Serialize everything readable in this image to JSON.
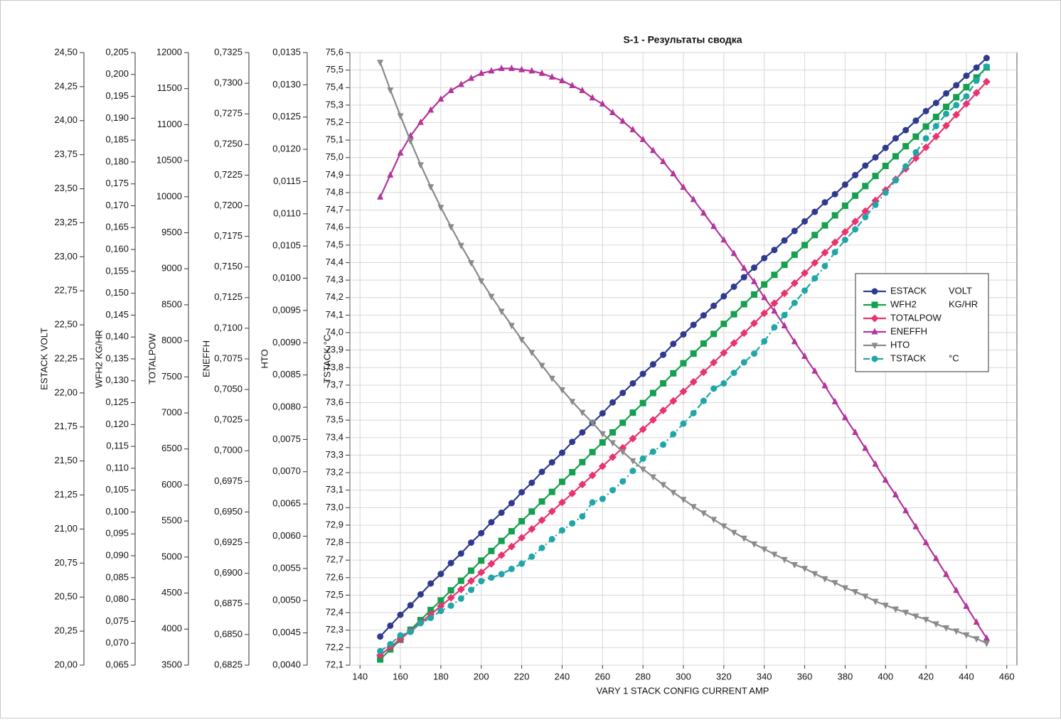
{
  "chart_data": {
    "type": "line",
    "title": "S-1 - Результаты сводка",
    "xlabel": "VARY 1 STACK CONFIG CURRENT AMP",
    "xlim": [
      135,
      465
    ],
    "xticks": [
      140,
      160,
      180,
      200,
      220,
      240,
      260,
      280,
      300,
      320,
      340,
      360,
      380,
      400,
      420,
      440,
      460
    ],
    "grid": true,
    "legend": "right",
    "x": [
      150,
      155,
      160,
      165,
      170,
      175,
      180,
      185,
      190,
      195,
      200,
      205,
      210,
      215,
      220,
      225,
      230,
      235,
      240,
      245,
      250,
      255,
      260,
      265,
      270,
      275,
      280,
      285,
      290,
      295,
      300,
      305,
      310,
      315,
      320,
      325,
      330,
      335,
      340,
      345,
      350,
      355,
      360,
      365,
      370,
      375,
      380,
      385,
      390,
      395,
      400,
      405,
      410,
      415,
      420,
      425,
      430,
      435,
      440,
      445,
      450
    ],
    "axes": [
      {
        "label": "ESTACK  VOLT",
        "ylim": [
          20,
          24.5
        ],
        "yticks": [
          {
            "value": 20,
            "label": "20,00"
          },
          {
            "value": 20.25,
            "label": "20,25"
          },
          {
            "value": 20.5,
            "label": "20,50"
          },
          {
            "value": 20.75,
            "label": "20,75"
          },
          {
            "value": 21,
            "label": "21,00"
          },
          {
            "value": 21.25,
            "label": "21,25"
          },
          {
            "value": 21.5,
            "label": "21,50"
          },
          {
            "value": 21.75,
            "label": "21,75"
          },
          {
            "value": 22,
            "label": "22,00"
          },
          {
            "value": 22.25,
            "label": "22,25"
          },
          {
            "value": 22.5,
            "label": "22,50"
          },
          {
            "value": 22.75,
            "label": "22,75"
          },
          {
            "value": 23,
            "label": "23,00"
          },
          {
            "value": 23.25,
            "label": "23,25"
          },
          {
            "value": 23.5,
            "label": "23,50"
          },
          {
            "value": 23.75,
            "label": "23,75"
          },
          {
            "value": 24,
            "label": "24,00"
          },
          {
            "value": 24.25,
            "label": "24,25"
          },
          {
            "value": 24.5,
            "label": "24,50"
          }
        ]
      },
      {
        "label": "WFH2  KG/HR",
        "ylim": [
          0.065,
          0.205
        ],
        "yticks": [
          {
            "value": 0.065,
            "label": "0,065"
          },
          {
            "value": 0.07,
            "label": "0,070"
          },
          {
            "value": 0.075,
            "label": "0,075"
          },
          {
            "value": 0.08,
            "label": "0,080"
          },
          {
            "value": 0.085,
            "label": "0,085"
          },
          {
            "value": 0.09,
            "label": "0,090"
          },
          {
            "value": 0.095,
            "label": "0,095"
          },
          {
            "value": 0.1,
            "label": "0,100"
          },
          {
            "value": 0.105,
            "label": "0,105"
          },
          {
            "value": 0.11,
            "label": "0,110"
          },
          {
            "value": 0.115,
            "label": "0,115"
          },
          {
            "value": 0.12,
            "label": "0,120"
          },
          {
            "value": 0.125,
            "label": "0,125"
          },
          {
            "value": 0.13,
            "label": "0,130"
          },
          {
            "value": 0.135,
            "label": "0,135"
          },
          {
            "value": 0.14,
            "label": "0,140"
          },
          {
            "value": 0.145,
            "label": "0,145"
          },
          {
            "value": 0.15,
            "label": "0,150"
          },
          {
            "value": 0.155,
            "label": "0,155"
          },
          {
            "value": 0.16,
            "label": "0,160"
          },
          {
            "value": 0.165,
            "label": "0,165"
          },
          {
            "value": 0.17,
            "label": "0,170"
          },
          {
            "value": 0.175,
            "label": "0,175"
          },
          {
            "value": 0.18,
            "label": "0,180"
          },
          {
            "value": 0.185,
            "label": "0,185"
          },
          {
            "value": 0.19,
            "label": "0,190"
          },
          {
            "value": 0.195,
            "label": "0,195"
          },
          {
            "value": 0.2,
            "label": "0,200"
          },
          {
            "value": 0.205,
            "label": "0,205"
          }
        ]
      },
      {
        "label": "TOTALPOW",
        "ylim": [
          3500,
          12000
        ],
        "yticks": [
          3500,
          4000,
          4500,
          5000,
          5500,
          6000,
          6500,
          7000,
          7500,
          8000,
          8500,
          9000,
          9500,
          10000,
          10500,
          11000,
          11500,
          12000
        ]
      },
      {
        "label": "ENEFFH",
        "ylim": [
          0.6825,
          0.7325
        ],
        "yticks": [
          {
            "value": 0.6825,
            "label": "0,6825"
          },
          {
            "value": 0.685,
            "label": "0,6850"
          },
          {
            "value": 0.6875,
            "label": "0,6875"
          },
          {
            "value": 0.69,
            "label": "0,6900"
          },
          {
            "value": 0.6925,
            "label": "0,6925"
          },
          {
            "value": 0.695,
            "label": "0,6950"
          },
          {
            "value": 0.6975,
            "label": "0,6975"
          },
          {
            "value": 0.7,
            "label": "0,7000"
          },
          {
            "value": 0.7025,
            "label": "0,7025"
          },
          {
            "value": 0.705,
            "label": "0,7050"
          },
          {
            "value": 0.7075,
            "label": "0,7075"
          },
          {
            "value": 0.71,
            "label": "0,7100"
          },
          {
            "value": 0.7125,
            "label": "0,7125"
          },
          {
            "value": 0.715,
            "label": "0,7150"
          },
          {
            "value": 0.7175,
            "label": "0,7175"
          },
          {
            "value": 0.72,
            "label": "0,7200"
          },
          {
            "value": 0.7225,
            "label": "0,7225"
          },
          {
            "value": 0.725,
            "label": "0,7250"
          },
          {
            "value": 0.7275,
            "label": "0,7275"
          },
          {
            "value": 0.73,
            "label": "0,7300"
          },
          {
            "value": 0.7325,
            "label": "0,7325"
          }
        ]
      },
      {
        "label": "HTO",
        "ylim": [
          0.004,
          0.0135
        ],
        "yticks": [
          {
            "value": 0.004,
            "label": "0,0040"
          },
          {
            "value": 0.0045,
            "label": "0,0045"
          },
          {
            "value": 0.005,
            "label": "0,0050"
          },
          {
            "value": 0.0055,
            "label": "0,0055"
          },
          {
            "value": 0.006,
            "label": "0,0060"
          },
          {
            "value": 0.0065,
            "label": "0,0065"
          },
          {
            "value": 0.007,
            "label": "0,0070"
          },
          {
            "value": 0.0075,
            "label": "0,0075"
          },
          {
            "value": 0.008,
            "label": "0,0080"
          },
          {
            "value": 0.0085,
            "label": "0,0085"
          },
          {
            "value": 0.009,
            "label": "0,0090"
          },
          {
            "value": 0.0095,
            "label": "0,0095"
          },
          {
            "value": 0.01,
            "label": "0,0100"
          },
          {
            "value": 0.0105,
            "label": "0,0105"
          },
          {
            "value": 0.011,
            "label": "0,0110"
          },
          {
            "value": 0.0115,
            "label": "0,0115"
          },
          {
            "value": 0.012,
            "label": "0,0120"
          },
          {
            "value": 0.0125,
            "label": "0,0125"
          },
          {
            "value": 0.013,
            "label": "0,0130"
          },
          {
            "value": 0.0135,
            "label": "0,0135"
          }
        ]
      },
      {
        "label": "TSTACK  °C",
        "ylim": [
          72.1,
          75.6
        ],
        "yticks": [
          {
            "value": 72.1,
            "label": "72,1"
          },
          {
            "value": 72.2,
            "label": "72,2"
          },
          {
            "value": 72.3,
            "label": "72,3"
          },
          {
            "value": 72.4,
            "label": "72,4"
          },
          {
            "value": 72.5,
            "label": "72,5"
          },
          {
            "value": 72.6,
            "label": "72,6"
          },
          {
            "value": 72.7,
            "label": "72,7"
          },
          {
            "value": 72.8,
            "label": "72,8"
          },
          {
            "value": 72.9,
            "label": "72,9"
          },
          {
            "value": 73,
            "label": "73,0"
          },
          {
            "value": 73.1,
            "label": "73,1"
          },
          {
            "value": 73.2,
            "label": "73,2"
          },
          {
            "value": 73.3,
            "label": "73,3"
          },
          {
            "value": 73.4,
            "label": "73,4"
          },
          {
            "value": 73.5,
            "label": "73,5"
          },
          {
            "value": 73.6,
            "label": "73,6"
          },
          {
            "value": 73.7,
            "label": "73,7"
          },
          {
            "value": 73.8,
            "label": "73,8"
          },
          {
            "value": 73.9,
            "label": "73,9"
          },
          {
            "value": 74,
            "label": "74,0"
          },
          {
            "value": 74.1,
            "label": "74,1"
          },
          {
            "value": 74.2,
            "label": "74,2"
          },
          {
            "value": 74.3,
            "label": "74,3"
          },
          {
            "value": 74.4,
            "label": "74,4"
          },
          {
            "value": 74.5,
            "label": "74,5"
          },
          {
            "value": 74.6,
            "label": "74,6"
          },
          {
            "value": 74.7,
            "label": "74,7"
          },
          {
            "value": 74.8,
            "label": "74,8"
          },
          {
            "value": 74.9,
            "label": "74,9"
          },
          {
            "value": 75,
            "label": "75,0"
          },
          {
            "value": 75.1,
            "label": "75,1"
          },
          {
            "value": 75.2,
            "label": "75,2"
          },
          {
            "value": 75.3,
            "label": "75,3"
          },
          {
            "value": 75.4,
            "label": "75,4"
          },
          {
            "value": 75.5,
            "label": "75,5"
          },
          {
            "value": 75.6,
            "label": "75,6"
          }
        ]
      }
    ],
    "series": [
      {
        "name": "ESTACK",
        "unit": "VOLT",
        "color": "#2f3a8f",
        "marker": "circle",
        "line_style": "solid",
        "axis": 0,
        "values": [
          20.21,
          20.29,
          20.37,
          20.44,
          20.52,
          20.6,
          20.67,
          20.75,
          20.82,
          20.9,
          20.97,
          21.05,
          21.12,
          21.19,
          21.27,
          21.34,
          21.42,
          21.49,
          21.56,
          21.64,
          21.71,
          21.78,
          21.85,
          21.93,
          22.0,
          22.07,
          22.14,
          22.21,
          22.28,
          22.36,
          22.43,
          22.5,
          22.57,
          22.64,
          22.71,
          22.78,
          22.85,
          22.92,
          22.99,
          23.05,
          23.12,
          23.19,
          23.26,
          23.33,
          23.4,
          23.46,
          23.53,
          23.6,
          23.67,
          23.73,
          23.8,
          23.87,
          23.93,
          24.0,
          24.07,
          24.13,
          24.2,
          24.26,
          24.33,
          24.39,
          24.46
        ]
      },
      {
        "name": "WFH2",
        "unit": "KG/HR",
        "color": "#14a04e",
        "marker": "square",
        "line_style": "solid",
        "axis": 1,
        "values": [
          0.0663,
          0.0686,
          0.0708,
          0.0731,
          0.0753,
          0.0776,
          0.0798,
          0.0821,
          0.0843,
          0.0866,
          0.0889,
          0.0911,
          0.0934,
          0.0956,
          0.0979,
          0.1001,
          0.1024,
          0.1046,
          0.1069,
          0.1091,
          0.1114,
          0.1137,
          0.1159,
          0.1182,
          0.1204,
          0.1227,
          0.1249,
          0.1272,
          0.1294,
          0.1317,
          0.134,
          0.1362,
          0.1385,
          0.1407,
          0.143,
          0.1452,
          0.1475,
          0.1497,
          0.152,
          0.1542,
          0.1565,
          0.1588,
          0.161,
          0.1633,
          0.1655,
          0.1678,
          0.17,
          0.1723,
          0.1745,
          0.1768,
          0.1791,
          0.1813,
          0.1836,
          0.1858,
          0.1881,
          0.1903,
          0.1926,
          0.1948,
          0.1971,
          0.1993,
          0.2016
        ]
      },
      {
        "name": "TOTALPOW",
        "color": "#e8336f",
        "marker": "diamond",
        "line_style": "solid",
        "axis": 2,
        "values": [
          3638,
          3750,
          3862,
          3975,
          4089,
          4204,
          4319,
          4435,
          4552,
          4669,
          4787,
          4906,
          5026,
          5146,
          5267,
          5388,
          5511,
          5634,
          5758,
          5882,
          6007,
          6133,
          6260,
          6387,
          6515,
          6644,
          6773,
          6903,
          7034,
          7166,
          7298,
          7431,
          7565,
          7699,
          7834,
          7970,
          8107,
          8244,
          8382,
          8521,
          8660,
          8800,
          8941,
          9082,
          9224,
          9367,
          9511,
          9655,
          9800,
          9946,
          10092,
          10240,
          10388,
          10536,
          10685,
          10835,
          10986,
          11137,
          11289,
          11442,
          11596
        ]
      },
      {
        "name": "ENEFFH",
        "color": "#b3349a",
        "marker": "triangle-up",
        "line_style": "solid",
        "axis": 3,
        "values": [
          0.7207,
          0.7225,
          0.7243,
          0.7257,
          0.7268,
          0.7278,
          0.7287,
          0.7294,
          0.7299,
          0.7304,
          0.7308,
          0.731,
          0.7312,
          0.7312,
          0.7311,
          0.731,
          0.7308,
          0.7305,
          0.7302,
          0.7298,
          0.7294,
          0.7288,
          0.7283,
          0.7276,
          0.7269,
          0.7262,
          0.7254,
          0.7245,
          0.7236,
          0.7226,
          0.7215,
          0.7205,
          0.7194,
          0.7183,
          0.7172,
          0.7161,
          0.7149,
          0.7138,
          0.7125,
          0.7114,
          0.7102,
          0.7089,
          0.7077,
          0.7065,
          0.7053,
          0.704,
          0.7027,
          0.7015,
          0.7002,
          0.6989,
          0.6976,
          0.6964,
          0.6951,
          0.6938,
          0.6925,
          0.6912,
          0.6899,
          0.6886,
          0.6873,
          0.686,
          0.6847
        ]
      },
      {
        "name": "HTO",
        "color": "#8a8a8a",
        "marker": "triangle-down",
        "line_style": "solid",
        "axis": 4,
        "values": [
          0.01335,
          0.01292,
          0.01252,
          0.01213,
          0.01176,
          0.01142,
          0.0111,
          0.0108,
          0.01051,
          0.01024,
          0.00996,
          0.00972,
          0.00949,
          0.00927,
          0.00905,
          0.00885,
          0.00865,
          0.00845,
          0.00827,
          0.00809,
          0.00792,
          0.00776,
          0.00759,
          0.00745,
          0.00731,
          0.00717,
          0.00704,
          0.00692,
          0.0068,
          0.00668,
          0.00657,
          0.00646,
          0.00636,
          0.00626,
          0.00616,
          0.00606,
          0.00597,
          0.00588,
          0.0058,
          0.00572,
          0.00564,
          0.00556,
          0.0055,
          0.00542,
          0.00534,
          0.00528,
          0.0052,
          0.00514,
          0.00507,
          0.00499,
          0.00493,
          0.00487,
          0.00482,
          0.00476,
          0.00471,
          0.00464,
          0.00458,
          0.00453,
          0.00447,
          0.00441,
          0.00434
        ]
      },
      {
        "name": "TSTACK",
        "unit": "°C",
        "color": "#20a6a6",
        "marker": "circle",
        "line_style": "dashdot",
        "axis": 5,
        "values": [
          72.18,
          72.22,
          72.27,
          72.29,
          72.34,
          72.37,
          72.41,
          72.44,
          72.48,
          72.53,
          72.58,
          72.6,
          72.62,
          72.65,
          72.68,
          72.72,
          72.77,
          72.82,
          72.87,
          72.91,
          72.95,
          73.03,
          73.05,
          73.1,
          73.15,
          73.21,
          73.28,
          73.32,
          73.36,
          73.42,
          73.48,
          73.54,
          73.61,
          73.68,
          73.71,
          73.77,
          73.83,
          73.88,
          73.95,
          74.03,
          74.1,
          74.17,
          74.24,
          74.31,
          74.38,
          74.46,
          74.53,
          74.59,
          74.66,
          74.73,
          74.8,
          74.87,
          74.95,
          75.03,
          75.11,
          75.18,
          75.25,
          75.3,
          75.35,
          75.44,
          75.52
        ]
      }
    ]
  }
}
